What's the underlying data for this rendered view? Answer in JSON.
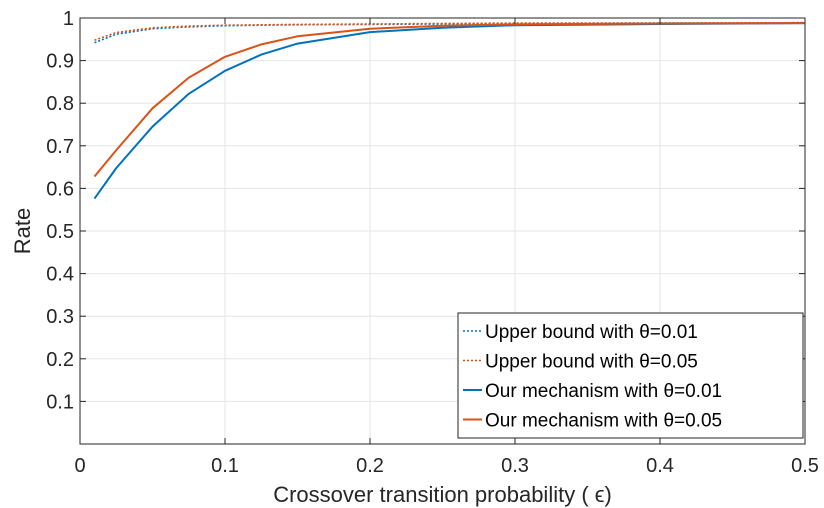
{
  "chart_data": {
    "type": "line",
    "title": "",
    "xlabel": "Crossover transition probability ( ϵ)",
    "ylabel": "Rate",
    "xlim": [
      0,
      0.5
    ],
    "ylim": [
      0,
      1
    ],
    "xticks": [
      0,
      0.1,
      0.2,
      0.3,
      0.4,
      0.5
    ],
    "xtick_labels": [
      "0",
      "0.1",
      "0.2",
      "0.3",
      "0.4",
      "0.5"
    ],
    "yticks": [
      0.1,
      0.2,
      0.3,
      0.4,
      0.5,
      0.6,
      0.7,
      0.8,
      0.9,
      1
    ],
    "ytick_labels": [
      "0.1",
      "0.2",
      "0.3",
      "0.4",
      "0.5",
      "0.6",
      "0.7",
      "0.8",
      "0.9",
      "1"
    ],
    "grid": true,
    "legend_position": "bottom-right",
    "series": [
      {
        "name": "Upper bound with  θ=0.01",
        "color": "#0072bd",
        "style": "dotted",
        "x": [
          0.01,
          0.025,
          0.05,
          0.075,
          0.1,
          0.125,
          0.15,
          0.2,
          0.25,
          0.3,
          0.4,
          0.5
        ],
        "y": [
          0.942,
          0.962,
          0.975,
          0.979,
          0.982,
          0.983,
          0.984,
          0.985,
          0.986,
          0.987,
          0.988,
          0.989
        ]
      },
      {
        "name": "Upper bound with  θ=0.05",
        "color": "#d95319",
        "style": "dotted",
        "x": [
          0.01,
          0.025,
          0.05,
          0.075,
          0.1,
          0.125,
          0.15,
          0.2,
          0.25,
          0.3,
          0.4,
          0.5
        ],
        "y": [
          0.948,
          0.966,
          0.977,
          0.981,
          0.983,
          0.984,
          0.985,
          0.986,
          0.987,
          0.988,
          0.988,
          0.989
        ]
      },
      {
        "name": "Our mechanism with  θ=0.01",
        "color": "#0072bd",
        "style": "solid",
        "x": [
          0.01,
          0.025,
          0.05,
          0.075,
          0.1,
          0.125,
          0.15,
          0.2,
          0.25,
          0.3,
          0.4,
          0.5
        ],
        "y": [
          0.576,
          0.648,
          0.745,
          0.822,
          0.876,
          0.914,
          0.94,
          0.967,
          0.977,
          0.983,
          0.986,
          0.988
        ]
      },
      {
        "name": "Our mechanism with  θ=0.05",
        "color": "#d95319",
        "style": "solid",
        "x": [
          0.01,
          0.025,
          0.05,
          0.075,
          0.1,
          0.125,
          0.15,
          0.2,
          0.25,
          0.3,
          0.4,
          0.5
        ],
        "y": [
          0.628,
          0.69,
          0.788,
          0.86,
          0.909,
          0.938,
          0.957,
          0.975,
          0.982,
          0.985,
          0.987,
          0.988
        ]
      }
    ]
  }
}
